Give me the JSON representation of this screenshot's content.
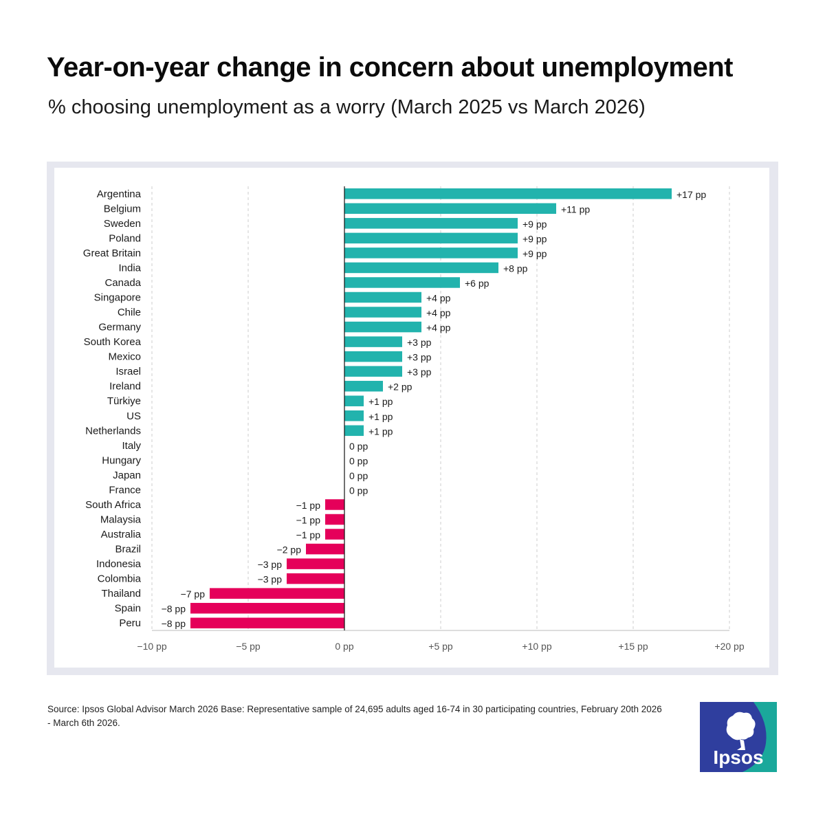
{
  "title": "Year-on-year change in concern about unemployment",
  "subtitle": "% choosing unemployment as a worry (March 2025 vs March 2026)",
  "source": "Source: Ipsos Global Advisor March 2026 Base: Representative sample of 24,695 adults aged 16-74 in 30 participating countries, February 20th 2026 - March 6th 2026.",
  "logo": {
    "text": "Ipsos",
    "icon": "ipsos-logo-icon"
  },
  "colors": {
    "positive": "#22b3ad",
    "negative": "#e5005a",
    "zero_line": "#111111",
    "grid": "#cccccc",
    "frame": "#e6e7ef",
    "logo_blue": "#2f3e9e",
    "logo_teal": "#1aa89b"
  },
  "chart_data": {
    "type": "bar",
    "orientation": "horizontal",
    "unit": "pp",
    "xlim": [
      -10,
      20
    ],
    "xticks": [
      -10,
      -5,
      0,
      5,
      10,
      15,
      20
    ],
    "xtick_labels": [
      "−10 pp",
      "−5 pp",
      "0 pp",
      "+5 pp",
      "+10 pp",
      "+15 pp",
      "+20 pp"
    ],
    "grid": "vertical-dashed",
    "categories": [
      "Argentina",
      "Belgium",
      "Sweden",
      "Poland",
      "Great Britain",
      "India",
      "Canada",
      "Singapore",
      "Chile",
      "Germany",
      "South Korea",
      "Mexico",
      "Israel",
      "Ireland",
      "Türkiye",
      "US",
      "Netherlands",
      "Italy",
      "Hungary",
      "Japan",
      "France",
      "South Africa",
      "Malaysia",
      "Australia",
      "Brazil",
      "Indonesia",
      "Colombia",
      "Thailand",
      "Spain",
      "Peru"
    ],
    "values": [
      17,
      11,
      9,
      9,
      9,
      8,
      6,
      4,
      4,
      4,
      3,
      3,
      3,
      2,
      1,
      1,
      1,
      0,
      0,
      0,
      0,
      -1,
      -1,
      -1,
      -2,
      -3,
      -3,
      -7,
      -8,
      -8
    ],
    "value_labels": [
      "+17 pp",
      "+11 pp",
      "+9 pp",
      "+9 pp",
      "+9 pp",
      "+8 pp",
      "+6 pp",
      "+4 pp",
      "+4 pp",
      "+4 pp",
      "+3 pp",
      "+3 pp",
      "+3 pp",
      "+2 pp",
      "+1 pp",
      "+1 pp",
      "+1 pp",
      "0 pp",
      "0 pp",
      "0 pp",
      "0 pp",
      "−1 pp",
      "−1 pp",
      "−1 pp",
      "−2 pp",
      "−3 pp",
      "−3 pp",
      "−7 pp",
      "−8 pp",
      "−8 pp"
    ]
  }
}
